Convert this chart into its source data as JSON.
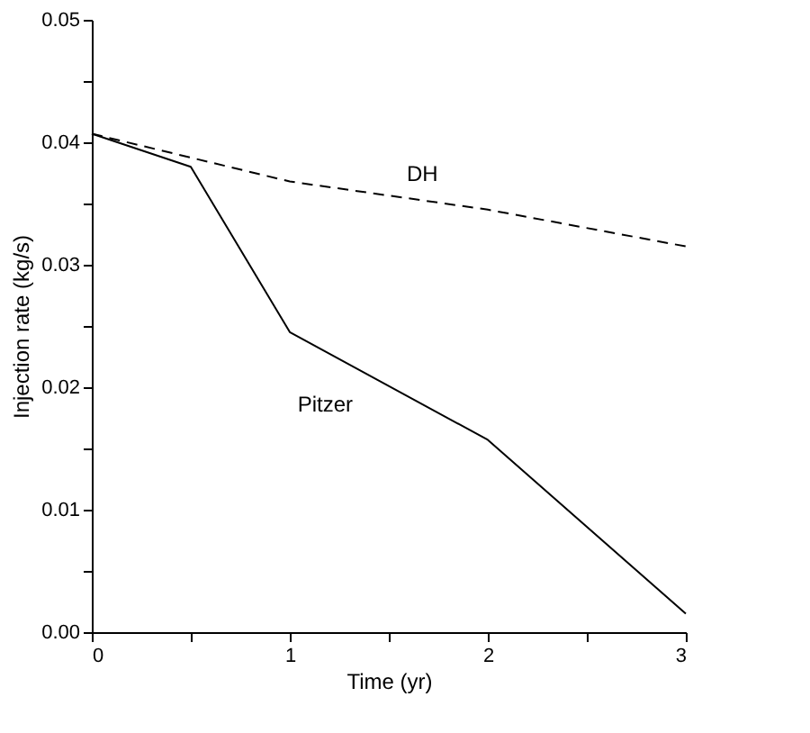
{
  "chart_data": {
    "type": "line",
    "xlabel": "Time (yr)",
    "ylabel": "Injection rate (kg/s)",
    "xlim": [
      0,
      3
    ],
    "xticks": [
      0,
      {
        "value": 0.5,
        "label": null
      },
      1,
      {
        "value": 1.5,
        "label": null
      },
      2,
      {
        "value": 2.5,
        "label": null
      },
      3
    ],
    "ylim": [
      0,
      0.05
    ],
    "yticks": [
      {
        "value": 0,
        "label": "0.00"
      },
      {
        "value": 0.005,
        "label": null
      },
      {
        "value": 0.01,
        "label": "0.01"
      },
      {
        "value": 0.015,
        "label": null
      },
      {
        "value": 0.02,
        "label": "0.02"
      },
      {
        "value": 0.025,
        "label": null
      },
      {
        "value": 0.03,
        "label": "0.03"
      },
      {
        "value": 0.035,
        "label": null
      },
      {
        "value": 0.04,
        "label": "0.04"
      },
      {
        "value": 0.045,
        "label": null
      },
      {
        "value": 0.05,
        "label": "0.05"
      }
    ],
    "grid": false,
    "marker": "none",
    "series": [
      {
        "name": "DH",
        "color": "#000000",
        "line_style": "dashed",
        "x": [
          0,
          1,
          2,
          3
        ],
        "values": [
          0.0407,
          0.0368,
          0.0345,
          0.0315
        ]
      },
      {
        "name": "Pitzer",
        "color": "#000000",
        "line_style": "solid",
        "x": [
          0,
          0.5,
          1,
          2,
          3
        ],
        "values": [
          0.0407,
          0.038,
          0.0245,
          0.0157,
          0.0015
        ]
      }
    ]
  }
}
